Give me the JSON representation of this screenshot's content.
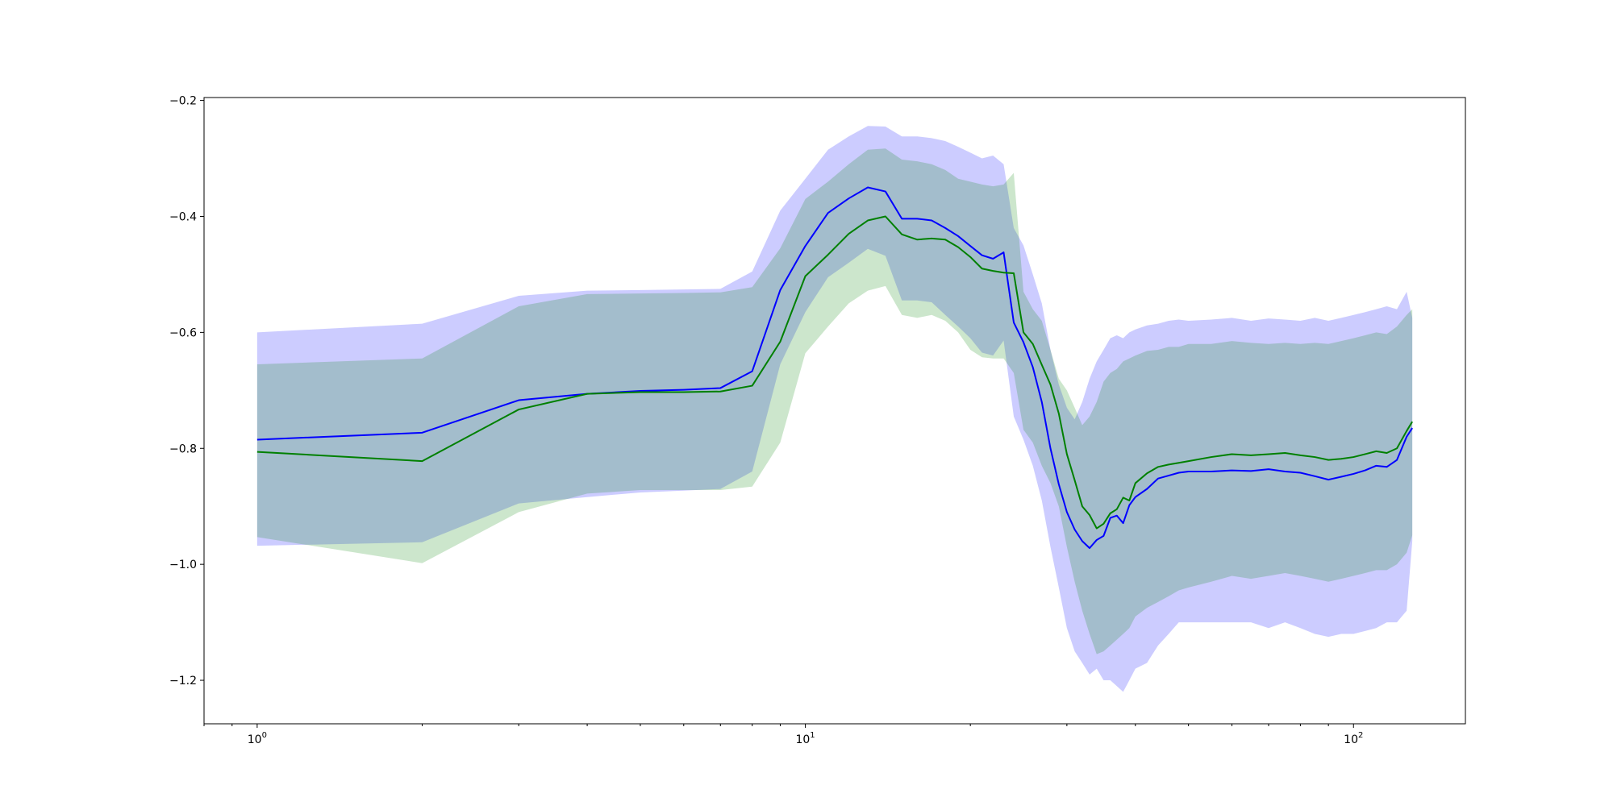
{
  "chart_data": {
    "type": "line",
    "title": "",
    "xlabel": "",
    "ylabel": "",
    "xscale": "log",
    "xlim": [
      0.8,
      160
    ],
    "ylim": [
      -1.275,
      -0.195
    ],
    "x_tick_labels": [
      {
        "value": 1,
        "base": "10",
        "exp": "0"
      },
      {
        "value": 10,
        "base": "10",
        "exp": "1"
      },
      {
        "value": 100,
        "base": "10",
        "exp": "2"
      }
    ],
    "y_ticks": [
      -0.2,
      -0.4,
      -0.6,
      -0.8,
      -1.0,
      -1.2
    ],
    "y_tick_labels": [
      "−0.2",
      "−0.4",
      "−0.6",
      "−0.8",
      "−1.0",
      "−1.2"
    ],
    "grid": false,
    "legend": "none",
    "series": [
      {
        "color": "#0000ff",
        "band_color": "#0000ff",
        "x": [
          1,
          2,
          3,
          4,
          5,
          6,
          7,
          8,
          9,
          10,
          11,
          12,
          13,
          14,
          15,
          16,
          17,
          18,
          19,
          20,
          21,
          22,
          23,
          24,
          25,
          26,
          27,
          28,
          29,
          30,
          31,
          32,
          33,
          34,
          35,
          36,
          37,
          38,
          39,
          40,
          42,
          44,
          46,
          48,
          50,
          55,
          60,
          65,
          70,
          75,
          80,
          85,
          90,
          95,
          100,
          105,
          110,
          115,
          120,
          125,
          128
        ],
        "y": [
          -0.785,
          -0.773,
          -0.717,
          -0.706,
          -0.701,
          -0.699,
          -0.696,
          -0.667,
          -0.527,
          -0.451,
          -0.394,
          -0.369,
          -0.35,
          -0.357,
          -0.404,
          -0.404,
          -0.407,
          -0.42,
          -0.434,
          -0.451,
          -0.467,
          -0.473,
          -0.462,
          -0.583,
          -0.617,
          -0.66,
          -0.72,
          -0.8,
          -0.862,
          -0.91,
          -0.94,
          -0.96,
          -0.972,
          -0.958,
          -0.951,
          -0.92,
          -0.916,
          -0.929,
          -0.898,
          -0.884,
          -0.87,
          -0.852,
          -0.847,
          -0.842,
          -0.84,
          -0.84,
          -0.838,
          -0.839,
          -0.836,
          -0.84,
          -0.842,
          -0.848,
          -0.854,
          -0.849,
          -0.844,
          -0.838,
          -0.83,
          -0.832,
          -0.82,
          -0.78,
          -0.765
        ],
        "upper": [
          -0.6,
          -0.585,
          -0.537,
          -0.528,
          -0.527,
          -0.526,
          -0.525,
          -0.495,
          -0.39,
          -0.335,
          -0.285,
          -0.262,
          -0.244,
          -0.245,
          -0.262,
          -0.262,
          -0.265,
          -0.27,
          -0.28,
          -0.29,
          -0.3,
          -0.295,
          -0.31,
          -0.42,
          -0.45,
          -0.5,
          -0.55,
          -0.63,
          -0.69,
          -0.73,
          -0.75,
          -0.72,
          -0.68,
          -0.65,
          -0.63,
          -0.61,
          -0.605,
          -0.61,
          -0.6,
          -0.595,
          -0.588,
          -0.585,
          -0.58,
          -0.578,
          -0.58,
          -0.578,
          -0.575,
          -0.58,
          -0.576,
          -0.578,
          -0.58,
          -0.575,
          -0.58,
          -0.575,
          -0.57,
          -0.565,
          -0.56,
          -0.555,
          -0.56,
          -0.53,
          -0.575
        ],
        "lower": [
          -0.968,
          -0.962,
          -0.895,
          -0.884,
          -0.876,
          -0.873,
          -0.87,
          -0.84,
          -0.655,
          -0.565,
          -0.505,
          -0.48,
          -0.456,
          -0.468,
          -0.545,
          -0.545,
          -0.548,
          -0.57,
          -0.59,
          -0.61,
          -0.635,
          -0.64,
          -0.614,
          -0.745,
          -0.785,
          -0.83,
          -0.89,
          -0.97,
          -1.04,
          -1.11,
          -1.15,
          -1.17,
          -1.19,
          -1.18,
          -1.2,
          -1.2,
          -1.21,
          -1.22,
          -1.2,
          -1.18,
          -1.17,
          -1.14,
          -1.12,
          -1.1,
          -1.1,
          -1.1,
          -1.1,
          -1.1,
          -1.11,
          -1.1,
          -1.11,
          -1.12,
          -1.125,
          -1.12,
          -1.12,
          -1.115,
          -1.11,
          -1.1,
          -1.1,
          -1.08,
          -0.96
        ]
      },
      {
        "color": "#008000",
        "band_color": "#008000",
        "x": [
          1,
          2,
          3,
          4,
          5,
          6,
          7,
          8,
          9,
          10,
          11,
          12,
          13,
          14,
          15,
          16,
          17,
          18,
          19,
          20,
          21,
          22,
          23,
          24,
          25,
          26,
          27,
          28,
          29,
          30,
          31,
          32,
          33,
          34,
          35,
          36,
          37,
          38,
          39,
          40,
          42,
          44,
          46,
          48,
          50,
          55,
          60,
          65,
          70,
          75,
          80,
          85,
          90,
          95,
          100,
          105,
          110,
          115,
          120,
          125,
          128
        ],
        "y": [
          -0.806,
          -0.822,
          -0.733,
          -0.706,
          -0.703,
          -0.703,
          -0.702,
          -0.692,
          -0.616,
          -0.503,
          -0.466,
          -0.43,
          -0.407,
          -0.4,
          -0.431,
          -0.44,
          -0.438,
          -0.44,
          -0.453,
          -0.47,
          -0.49,
          -0.494,
          -0.497,
          -0.498,
          -0.6,
          -0.62,
          -0.656,
          -0.69,
          -0.74,
          -0.81,
          -0.855,
          -0.9,
          -0.915,
          -0.938,
          -0.93,
          -0.912,
          -0.905,
          -0.885,
          -0.89,
          -0.86,
          -0.843,
          -0.832,
          -0.828,
          -0.825,
          -0.822,
          -0.815,
          -0.81,
          -0.812,
          -0.81,
          -0.808,
          -0.812,
          -0.815,
          -0.82,
          -0.818,
          -0.815,
          -0.81,
          -0.805,
          -0.808,
          -0.8,
          -0.77,
          -0.754
        ],
        "upper": [
          -0.655,
          -0.645,
          -0.555,
          -0.534,
          -0.533,
          -0.532,
          -0.531,
          -0.522,
          -0.455,
          -0.37,
          -0.34,
          -0.31,
          -0.285,
          -0.283,
          -0.302,
          -0.305,
          -0.31,
          -0.32,
          -0.335,
          -0.34,
          -0.345,
          -0.348,
          -0.345,
          -0.325,
          -0.53,
          -0.56,
          -0.58,
          -0.63,
          -0.68,
          -0.7,
          -0.73,
          -0.76,
          -0.745,
          -0.72,
          -0.685,
          -0.67,
          -0.663,
          -0.65,
          -0.645,
          -0.64,
          -0.632,
          -0.63,
          -0.625,
          -0.625,
          -0.62,
          -0.62,
          -0.615,
          -0.618,
          -0.62,
          -0.618,
          -0.62,
          -0.618,
          -0.62,
          -0.615,
          -0.61,
          -0.605,
          -0.6,
          -0.603,
          -0.59,
          -0.57,
          -0.56
        ],
        "lower": [
          -0.953,
          -0.998,
          -0.91,
          -0.878,
          -0.872,
          -0.872,
          -0.872,
          -0.866,
          -0.79,
          -0.636,
          -0.59,
          -0.55,
          -0.528,
          -0.52,
          -0.57,
          -0.575,
          -0.57,
          -0.58,
          -0.6,
          -0.63,
          -0.643,
          -0.645,
          -0.645,
          -0.67,
          -0.768,
          -0.79,
          -0.83,
          -0.86,
          -0.9,
          -0.97,
          -1.03,
          -1.08,
          -1.12,
          -1.155,
          -1.15,
          -1.14,
          -1.13,
          -1.12,
          -1.11,
          -1.09,
          -1.075,
          -1.065,
          -1.055,
          -1.045,
          -1.04,
          -1.03,
          -1.02,
          -1.025,
          -1.02,
          -1.015,
          -1.02,
          -1.025,
          -1.03,
          -1.025,
          -1.02,
          -1.015,
          -1.01,
          -1.01,
          -1.0,
          -0.98,
          -0.95
        ]
      }
    ]
  }
}
